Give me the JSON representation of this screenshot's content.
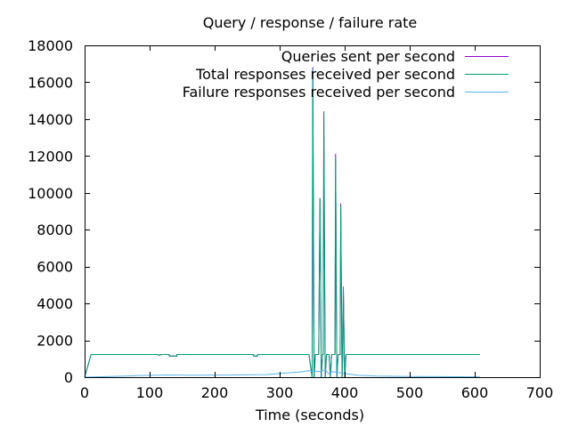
{
  "chart_data": {
    "type": "line",
    "title": "Query / response / failure rate",
    "xlabel": "Time (seconds)",
    "ylabel": "",
    "xlim": [
      0,
      700
    ],
    "ylim": [
      0,
      18000
    ],
    "x_ticks": [
      "0",
      "100",
      "200",
      "300",
      "400",
      "500",
      "600",
      "700"
    ],
    "y_ticks": [
      "0",
      "2000",
      "4000",
      "6000",
      "8000",
      "10000",
      "12000",
      "14000",
      "16000",
      "18000"
    ],
    "grid": false,
    "legend_position": "top-right",
    "series": [
      {
        "name": "Queries sent per second",
        "color": "#9400d3",
        "points": [
          [
            0,
            0
          ],
          [
            10,
            1230
          ],
          [
            112,
            1230
          ],
          [
            115,
            1180
          ],
          [
            118,
            1230
          ],
          [
            130,
            1230
          ],
          [
            130,
            1150
          ],
          [
            142,
            1150
          ],
          [
            142,
            1230
          ],
          [
            260,
            1230
          ],
          [
            260,
            1150
          ],
          [
            266,
            1150
          ],
          [
            266,
            1230
          ],
          [
            345,
            1230
          ],
          [
            350,
            0
          ],
          [
            351,
            16800
          ],
          [
            353,
            0
          ],
          [
            355,
            1230
          ],
          [
            360,
            1230
          ],
          [
            362,
            9700
          ],
          [
            364,
            0
          ],
          [
            366,
            1230
          ],
          [
            367,
            1230
          ],
          [
            368,
            14400
          ],
          [
            370,
            0
          ],
          [
            372,
            1230
          ],
          [
            376,
            1230
          ],
          [
            378,
            0
          ],
          [
            380,
            1230
          ],
          [
            385,
            1230
          ],
          [
            386,
            12100
          ],
          [
            388,
            0
          ],
          [
            390,
            1230
          ],
          [
            393,
            1230
          ],
          [
            394,
            9400
          ],
          [
            396,
            0
          ],
          [
            397,
            1230
          ],
          [
            398,
            4900
          ],
          [
            400,
            0
          ],
          [
            402,
            1230
          ],
          [
            608,
            1230
          ]
        ]
      },
      {
        "name": "Total responses received per second",
        "color": "#009e73",
        "points": [
          [
            0,
            0
          ],
          [
            10,
            1230
          ],
          [
            112,
            1230
          ],
          [
            115,
            1180
          ],
          [
            118,
            1230
          ],
          [
            130,
            1230
          ],
          [
            130,
            1150
          ],
          [
            142,
            1150
          ],
          [
            142,
            1230
          ],
          [
            260,
            1230
          ],
          [
            260,
            1150
          ],
          [
            266,
            1150
          ],
          [
            266,
            1230
          ],
          [
            345,
            1230
          ],
          [
            350,
            0
          ],
          [
            351,
            16700
          ],
          [
            353,
            0
          ],
          [
            355,
            1230
          ],
          [
            360,
            1230
          ],
          [
            362,
            9700
          ],
          [
            364,
            0
          ],
          [
            366,
            1230
          ],
          [
            367,
            1230
          ],
          [
            368,
            14400
          ],
          [
            370,
            0
          ],
          [
            372,
            1230
          ],
          [
            376,
            1230
          ],
          [
            378,
            0
          ],
          [
            380,
            1230
          ],
          [
            385,
            1230
          ],
          [
            386,
            11900
          ],
          [
            388,
            0
          ],
          [
            390,
            1230
          ],
          [
            393,
            1230
          ],
          [
            394,
            9300
          ],
          [
            396,
            0
          ],
          [
            397,
            1230
          ],
          [
            398,
            4900
          ],
          [
            400,
            0
          ],
          [
            402,
            1230
          ],
          [
            608,
            1230
          ]
        ]
      },
      {
        "name": "Failure responses received per second",
        "color": "#56b4e9",
        "points": [
          [
            0,
            0
          ],
          [
            20,
            20
          ],
          [
            50,
            50
          ],
          [
            80,
            80
          ],
          [
            100,
            100
          ],
          [
            130,
            120
          ],
          [
            160,
            110
          ],
          [
            200,
            110
          ],
          [
            230,
            120
          ],
          [
            260,
            130
          ],
          [
            280,
            140
          ],
          [
            300,
            200
          ],
          [
            320,
            250
          ],
          [
            335,
            300
          ],
          [
            345,
            350
          ],
          [
            350,
            320
          ],
          [
            355,
            330
          ],
          [
            362,
            300
          ],
          [
            370,
            400
          ],
          [
            375,
            200
          ],
          [
            380,
            300
          ],
          [
            390,
            250
          ],
          [
            400,
            200
          ],
          [
            420,
            100
          ],
          [
            450,
            60
          ],
          [
            500,
            40
          ],
          [
            550,
            30
          ],
          [
            600,
            20
          ],
          [
            608,
            10
          ]
        ]
      }
    ]
  }
}
